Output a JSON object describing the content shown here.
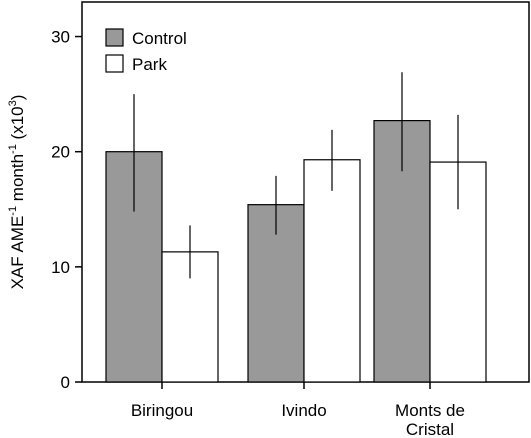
{
  "chart_data": {
    "type": "bar",
    "categories": [
      "Biringou",
      "Ivindo",
      "Monts de Cristal"
    ],
    "category_lines": [
      [
        "Biringou"
      ],
      [
        "Ivindo"
      ],
      [
        "Monts de",
        "Cristal"
      ]
    ],
    "series": [
      {
        "name": "Control",
        "color": "#999999",
        "values": [
          20.0,
          15.4,
          22.7
        ],
        "error_low": [
          14.8,
          12.8,
          18.3
        ],
        "error_high": [
          25.0,
          17.9,
          26.9
        ]
      },
      {
        "name": "Park",
        "color": "#ffffff",
        "values": [
          11.3,
          19.3,
          19.1
        ],
        "error_low": [
          9.0,
          16.6,
          15.0
        ],
        "error_high": [
          13.6,
          21.9,
          23.2
        ]
      }
    ],
    "xlabel": "",
    "ylabel_parts": [
      "XAF AME",
      "-1",
      " month",
      "-1",
      " (x10",
      "3",
      ")"
    ],
    "ylim": [
      0,
      33
    ],
    "yticks": [
      0,
      10,
      20,
      30
    ],
    "grid": false,
    "legend_position": "top-left"
  }
}
